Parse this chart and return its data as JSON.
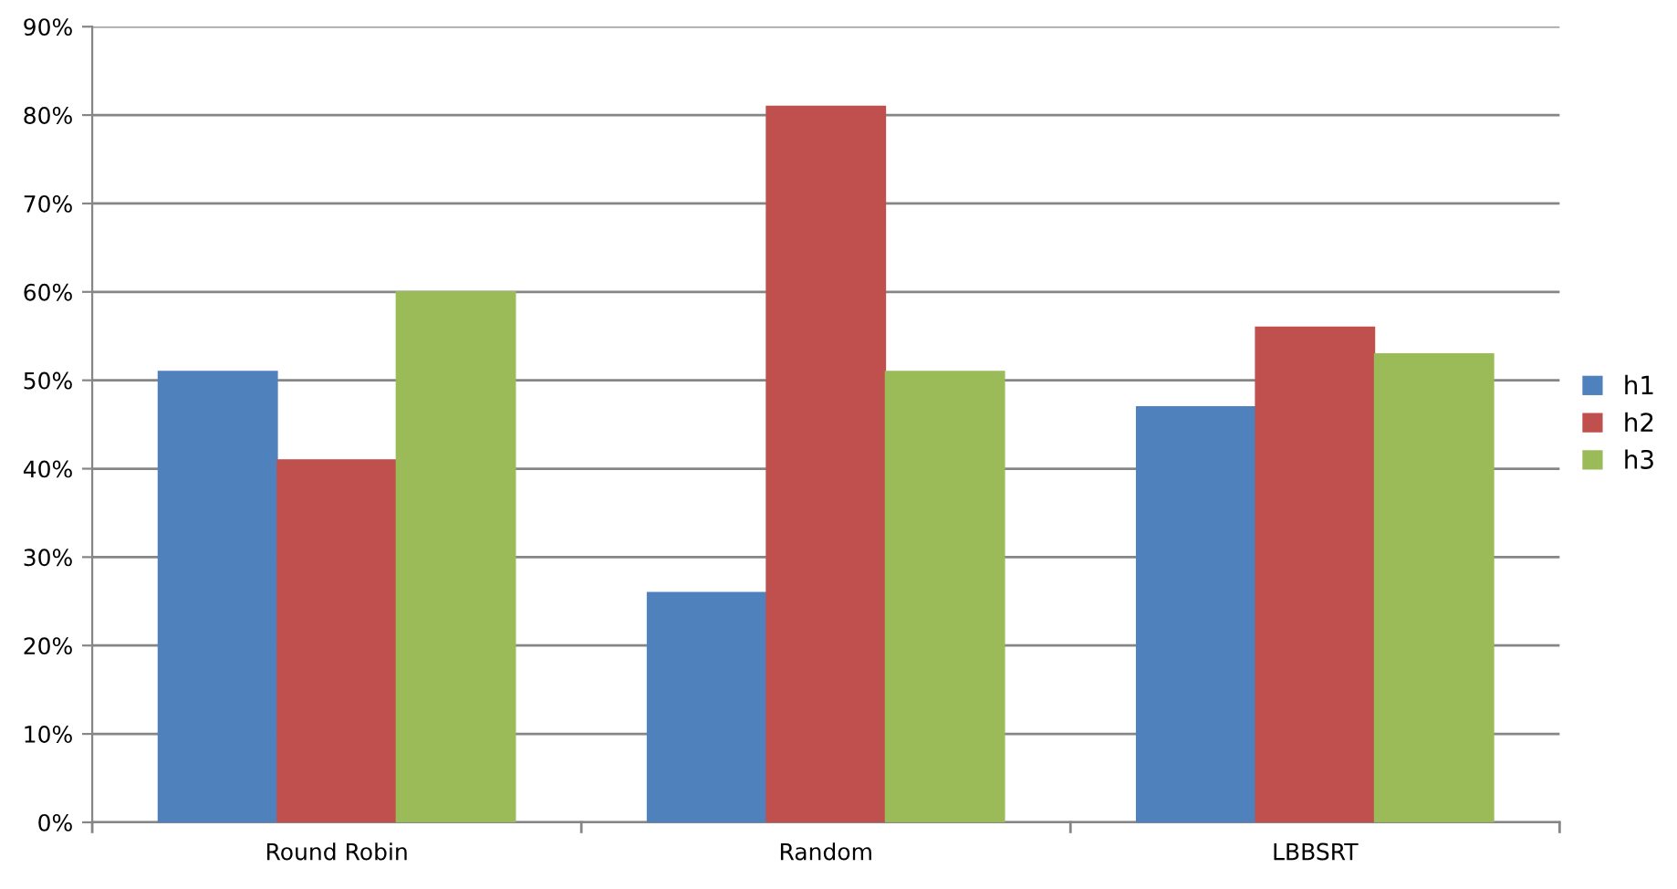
{
  "chart_data": {
    "type": "bar",
    "categories": [
      "Round Robin",
      "Random",
      "LBBSRT"
    ],
    "series": [
      {
        "name": "h1",
        "color": "#4f81bd",
        "values": [
          51,
          26,
          47
        ]
      },
      {
        "name": "h2",
        "color": "#c0504d",
        "values": [
          41,
          81,
          56
        ]
      },
      {
        "name": "h3",
        "color": "#9bbb59",
        "values": [
          60,
          51,
          53
        ]
      }
    ],
    "ylim": [
      0,
      90
    ],
    "yticks": [
      {
        "value": 0,
        "label": "0%"
      },
      {
        "value": 10,
        "label": "10%"
      },
      {
        "value": 20,
        "label": "20%"
      },
      {
        "value": 30,
        "label": "30%"
      },
      {
        "value": 40,
        "label": "40%"
      },
      {
        "value": 50,
        "label": "50%"
      },
      {
        "value": 60,
        "label": "60%"
      },
      {
        "value": 70,
        "label": "70%"
      },
      {
        "value": 80,
        "label": "80%"
      },
      {
        "value": 90,
        "label": "90%"
      }
    ],
    "grid": "y",
    "legend": "right"
  }
}
